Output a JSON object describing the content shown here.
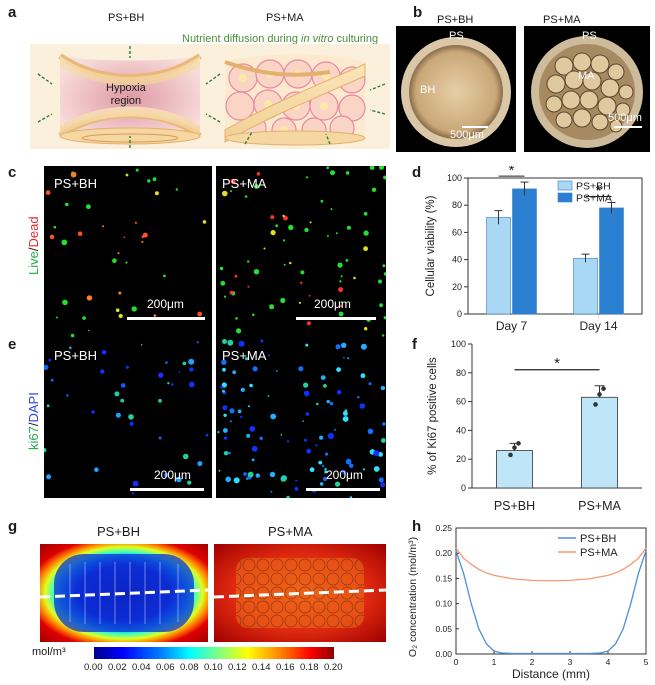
{
  "panels": {
    "a": {
      "label": "a",
      "group1": "PS+BH",
      "group2": "PS+MA",
      "caption_prefix": "Nutrient diffusion during ",
      "caption_italic": "in vitro",
      "caption_suffix": " culturing",
      "hypoxia_line1": "Hypoxia",
      "hypoxia_line2": "region"
    },
    "b": {
      "label": "b",
      "group1": "PS+BH",
      "group2": "PS+MA",
      "ps1": "PS",
      "ps2": "PS",
      "bh": "BH",
      "ma": "MA",
      "scale1": "500μm",
      "scale2": "500μm"
    },
    "c": {
      "label": "c",
      "group1": "PS+BH",
      "group2": "PS+MA",
      "ylabel_live": "Live",
      "ylabel_sep": "/",
      "ylabel_dead": "Dead",
      "scale1": "200μm",
      "scale2": "200μm"
    },
    "e": {
      "label": "e",
      "group1": "PS+BH",
      "group2": "PS+MA",
      "ylabel_ki": "ki67",
      "ylabel_sep": "/",
      "ylabel_dapi": "DAPI",
      "scale1": "200μm",
      "scale2": "200μm"
    },
    "g": {
      "label": "g",
      "group1": "PS+BH",
      "group2": "PS+MA",
      "unit": "mol/m³",
      "colorbar_ticks": [
        "0.00",
        "0.02",
        "0.04",
        "0.06",
        "0.08",
        "0.10",
        "0.12",
        "0.14",
        "0.16",
        "0.18",
        "0.20"
      ]
    }
  },
  "chart_data": [
    {
      "id": "d",
      "label": "d",
      "type": "bar",
      "ylabel": "Cellular viability (%)",
      "categories": [
        "Day 7",
        "Day 14"
      ],
      "ylim": [
        0,
        100
      ],
      "yticks": [
        "0",
        "20",
        "40",
        "60",
        "80",
        "100"
      ],
      "series": [
        {
          "name": "PS+BH",
          "color": "#a9d8f5",
          "values": [
            71,
            41
          ],
          "errors": [
            5,
            3
          ]
        },
        {
          "name": "PS+MA",
          "color": "#2a7fd1",
          "values": [
            92,
            78
          ],
          "errors": [
            5,
            4
          ]
        }
      ],
      "significance": [
        "*",
        "*"
      ],
      "legend": "top-right"
    },
    {
      "id": "f",
      "label": "f",
      "type": "bar",
      "ylabel": "% of Ki67 positive cells",
      "categories": [
        "PS+BH",
        "PS+MA"
      ],
      "ylim": [
        0,
        100
      ],
      "yticks": [
        "0",
        "20",
        "40",
        "60",
        "80",
        "100"
      ],
      "color": "#bfe5f8",
      "values": [
        26,
        63
      ],
      "errors": [
        5,
        8
      ],
      "points": [
        [
          23,
          28,
          31
        ],
        [
          58,
          65,
          69
        ]
      ],
      "significance": "*"
    },
    {
      "id": "h",
      "label": "h",
      "type": "line",
      "xlabel": "Distance (mm)",
      "ylabel": "O₂ concentration (mol/m³)",
      "xlim": [
        0,
        5
      ],
      "ylim": [
        0,
        0.25
      ],
      "xticks": [
        "0",
        "1",
        "2",
        "3",
        "4",
        "5"
      ],
      "yticks": [
        "0.00",
        "0.05",
        "0.10",
        "0.15",
        "0.20",
        "0.25"
      ],
      "series": [
        {
          "name": "PS+BH",
          "color": "#4a8fd9",
          "x": [
            0,
            0.2,
            0.4,
            0.6,
            0.8,
            1.0,
            1.2,
            1.5,
            2.0,
            2.5,
            3.0,
            3.5,
            3.8,
            4.0,
            4.2,
            4.4,
            4.6,
            4.8,
            5.0
          ],
          "y": [
            0.205,
            0.16,
            0.1,
            0.05,
            0.02,
            0.006,
            0.002,
            0.001,
            0.001,
            0.001,
            0.001,
            0.001,
            0.002,
            0.006,
            0.02,
            0.05,
            0.1,
            0.16,
            0.205
          ]
        },
        {
          "name": "PS+MA",
          "color": "#f39b72",
          "x": [
            0,
            0.2,
            0.4,
            0.6,
            0.8,
            1.0,
            1.5,
            2.0,
            2.5,
            3.0,
            3.5,
            4.0,
            4.2,
            4.4,
            4.6,
            4.8,
            5.0
          ],
          "y": [
            0.21,
            0.19,
            0.178,
            0.168,
            0.161,
            0.156,
            0.149,
            0.146,
            0.145,
            0.146,
            0.149,
            0.156,
            0.161,
            0.168,
            0.178,
            0.19,
            0.21
          ]
        }
      ],
      "legend": "top-right"
    }
  ]
}
